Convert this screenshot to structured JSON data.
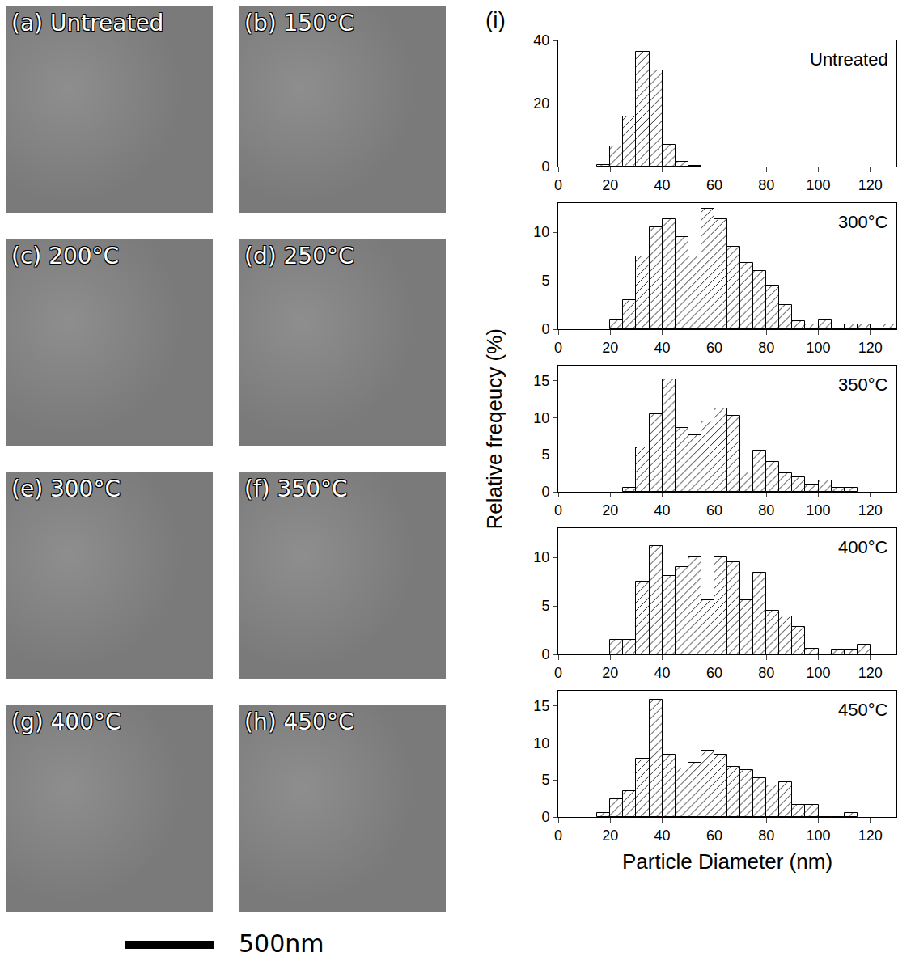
{
  "chart_data": [
    {
      "type": "histogram",
      "title": "Untreated",
      "color": "#ffffff",
      "grid": false,
      "bins": [
        15,
        20,
        25,
        30,
        35,
        40,
        45,
        50,
        55
      ],
      "values": [
        0.5,
        6.5,
        16,
        36.5,
        30.5,
        7,
        1.5,
        0.3
      ],
      "xlim": [
        0,
        130
      ],
      "xticks": [
        0,
        20,
        40,
        60,
        80,
        100,
        120
      ],
      "ylim": [
        0,
        40
      ],
      "yticks": [
        0,
        20,
        40
      ]
    },
    {
      "type": "histogram",
      "title": "300°C",
      "color": "#ffffff",
      "grid": false,
      "bins": [
        20,
        25,
        30,
        35,
        40,
        45,
        50,
        55,
        60,
        65,
        70,
        75,
        80,
        85,
        90,
        95,
        100,
        105,
        110,
        115,
        120,
        125,
        130
      ],
      "values": [
        1,
        3,
        7.5,
        10.5,
        11.3,
        9.5,
        7.5,
        12.4,
        11.3,
        8.5,
        6.8,
        6,
        4.5,
        2.5,
        0.8,
        0.5,
        1,
        0,
        0.5,
        0.5,
        0,
        0.5
      ],
      "xlim": [
        0,
        130
      ],
      "xticks": [
        0,
        20,
        40,
        60,
        80,
        100,
        120
      ],
      "ylim": [
        0,
        13
      ],
      "yticks": [
        0,
        5,
        10
      ]
    },
    {
      "type": "histogram",
      "title": "350°C",
      "color": "#ffffff",
      "grid": false,
      "bins": [
        25,
        30,
        35,
        40,
        45,
        50,
        55,
        60,
        65,
        70,
        75,
        80,
        85,
        90,
        95,
        100,
        105,
        110,
        115
      ],
      "values": [
        0.5,
        6,
        10.5,
        15.2,
        8.6,
        7.6,
        9.5,
        11.2,
        10.2,
        2.6,
        5.6,
        4,
        2.5,
        2,
        1,
        1.5,
        0.5,
        0.5
      ],
      "xlim": [
        0,
        130
      ],
      "xticks": [
        0,
        20,
        40,
        60,
        80,
        100,
        120
      ],
      "ylim": [
        0,
        17
      ],
      "yticks": [
        0,
        5,
        10,
        15
      ]
    },
    {
      "type": "histogram",
      "title": "400°C",
      "color": "#ffffff",
      "grid": false,
      "bins": [
        20,
        25,
        30,
        35,
        40,
        45,
        50,
        55,
        60,
        65,
        70,
        75,
        80,
        85,
        90,
        95,
        100,
        105,
        110,
        115,
        120
      ],
      "values": [
        1.5,
        1.5,
        7.5,
        11.2,
        8.1,
        9,
        10.1,
        5.6,
        10.1,
        9.5,
        5.6,
        8.4,
        4.5,
        3.9,
        2.8,
        0.6,
        0,
        0.5,
        0.5,
        1
      ],
      "xlim": [
        0,
        130
      ],
      "xticks": [
        0,
        20,
        40,
        60,
        80,
        100,
        120
      ],
      "ylim": [
        0,
        13
      ],
      "yticks": [
        0,
        5,
        10
      ]
    },
    {
      "type": "histogram",
      "title": "450°C",
      "color": "#ffffff",
      "grid": false,
      "bins": [
        15,
        20,
        25,
        30,
        35,
        40,
        45,
        50,
        55,
        60,
        65,
        70,
        75,
        80,
        85,
        90,
        95,
        100,
        105,
        110,
        115
      ],
      "values": [
        0.5,
        2.4,
        3.5,
        7.8,
        15.8,
        8.4,
        6.5,
        7.3,
        8.9,
        8.4,
        6.8,
        6.3,
        5.2,
        4.2,
        4.7,
        1.6,
        1.6,
        0,
        0,
        0.5
      ],
      "xlim": [
        0,
        130
      ],
      "xticks": [
        0,
        20,
        40,
        60,
        80,
        100,
        120
      ],
      "ylim": [
        0,
        17
      ],
      "yticks": [
        0,
        5,
        10,
        15
      ]
    }
  ],
  "x_label": "Particle Diameter (nm)",
  "y_label": "Relative freqeucy (%)",
  "chart_panel_label": "(i)",
  "image_panels": [
    "(a) Untreated",
    "(b) 150°C",
    "(c) 200°C",
    "(d) 250°C",
    "(e) 300°C",
    "(f) 350°C",
    "(g) 400°C",
    "(h) 450°C"
  ],
  "scale_bar": "500nm"
}
